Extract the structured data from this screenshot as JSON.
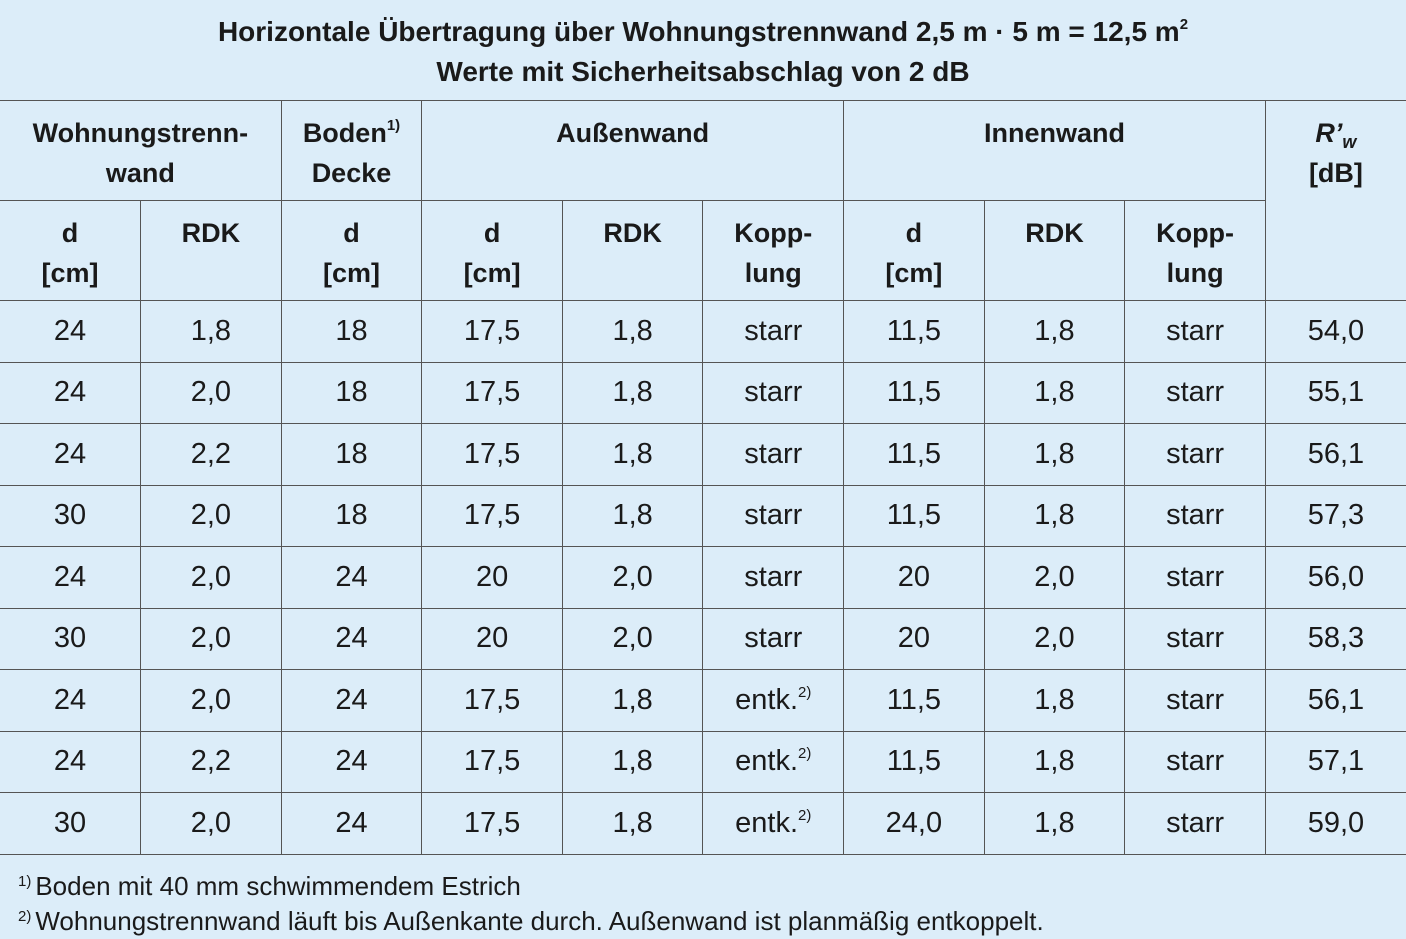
{
  "title": {
    "line1": "Horizontale Übertragung über Wohnungstrennwand 2,5 m · 5 m = 12,5 m",
    "line1_sup": "2",
    "line2": "Werte mit Sicherheitsabschlag von 2 dB"
  },
  "header": {
    "groups": [
      {
        "lines": [
          "Wohnungstrenn-",
          "wand"
        ]
      },
      {
        "lines": [
          "Boden",
          "Decke"
        ],
        "note": "1)"
      },
      {
        "lines": [
          "Außenwand"
        ]
      },
      {
        "lines": [
          "Innenwand"
        ]
      },
      {
        "lines": [
          "R’",
          "[dB]"
        ],
        "sub": "w"
      }
    ],
    "columns": [
      [
        "d",
        "[cm]"
      ],
      [
        "RDK"
      ],
      [
        "d",
        "[cm]"
      ],
      [
        "d",
        "[cm]"
      ],
      [
        "RDK"
      ],
      [
        "Kopp-",
        "lung"
      ],
      [
        "d",
        "[cm]"
      ],
      [
        "RDK"
      ],
      [
        "Kopp-",
        "lung"
      ]
    ]
  },
  "rows": [
    [
      "24",
      "1,8",
      "18",
      "17,5",
      "1,8",
      {
        "text": "starr"
      },
      "11,5",
      "1,8",
      "starr",
      "54,0"
    ],
    [
      "24",
      "2,0",
      "18",
      "17,5",
      "1,8",
      {
        "text": "starr"
      },
      "11,5",
      "1,8",
      "starr",
      "55,1"
    ],
    [
      "24",
      "2,2",
      "18",
      "17,5",
      "1,8",
      {
        "text": "starr"
      },
      "11,5",
      "1,8",
      "starr",
      "56,1"
    ],
    [
      "30",
      "2,0",
      "18",
      "17,5",
      "1,8",
      {
        "text": "starr"
      },
      "11,5",
      "1,8",
      "starr",
      "57,3"
    ],
    [
      "24",
      "2,0",
      "24",
      "20",
      "2,0",
      {
        "text": "starr"
      },
      "20",
      "2,0",
      "starr",
      "56,0"
    ],
    [
      "30",
      "2,0",
      "24",
      "20",
      "2,0",
      {
        "text": "starr"
      },
      "20",
      "2,0",
      "starr",
      "58,3"
    ],
    [
      "24",
      "2,0",
      "24",
      "17,5",
      "1,8",
      {
        "text": "entk.",
        "note": "2)"
      },
      "11,5",
      "1,8",
      "starr",
      "56,1"
    ],
    [
      "24",
      "2,2",
      "24",
      "17,5",
      "1,8",
      {
        "text": "entk.",
        "note": "2)"
      },
      "11,5",
      "1,8",
      "starr",
      "57,1"
    ],
    [
      "30",
      "2,0",
      "24",
      "17,5",
      "1,8",
      {
        "text": "entk.",
        "note": "2)"
      },
      "24,0",
      "1,8",
      "starr",
      "59,0"
    ]
  ],
  "footnotes": [
    {
      "mark": "1)",
      "text": "Boden mit 40 mm schwimmendem Estrich"
    },
    {
      "mark": "2)",
      "text": "Wohnungstrennwand läuft bis Außenkante durch. Außenwand ist planmäßig entkoppelt."
    }
  ]
}
